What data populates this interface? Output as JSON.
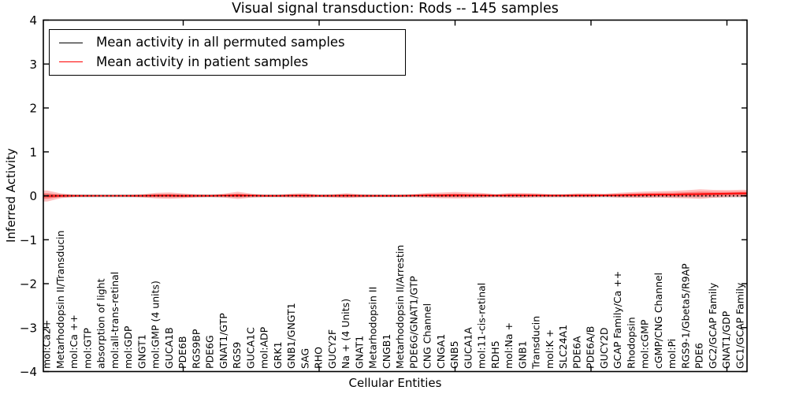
{
  "chart_data": {
    "type": "line",
    "title": "Visual signal transduction: Rods -- 145 samples",
    "xlabel": "Cellular Entities",
    "ylabel": "Inferred Activity",
    "ylim": [
      -4,
      4
    ],
    "ytick_values": [
      -4,
      -3,
      -2,
      -1,
      0,
      1,
      2,
      3,
      4
    ],
    "ytick_labels": [
      "−4",
      "−3",
      "−2",
      "−1",
      "0",
      "1",
      "2",
      "3",
      "4"
    ],
    "xticks_major": [
      10,
      20,
      30,
      40,
      50
    ],
    "grid": false,
    "legend_position": "upper left",
    "categories": [
      "mol:Ca2+",
      "Metarhodopsin II/Transducin",
      "mol:Ca ++",
      "mol:GTP",
      "absorption of light",
      "mol:all-trans-retinal",
      "mol:GDP",
      "GNGT1",
      "mol:GMP (4 units)",
      "GUCA1B",
      "PDE6B",
      "RGS9BP",
      "PDE6G",
      "GNAT1/GTP",
      "RGS9",
      "GUCA1C",
      "mol:ADP",
      "GRK1",
      "GNB1/GNGT1",
      "SAG",
      "RHO",
      "GUCY2F",
      "Na + (4 Units)",
      "GNAT1",
      "Metarhodopsin II",
      "CNGB1",
      "Metarhodopsin II/Arrestin",
      "PDE6G/GNAT1/GTP",
      "CNG Channel",
      "CNGA1",
      "GNB5",
      "GUCA1A",
      "mol:11-cis-retinal",
      "RDH5",
      "mol:Na +",
      "GNB1",
      "Transducin",
      "mol:K +",
      "SLC24A1",
      "PDE6A",
      "PDE6A/B",
      "GUCY2D",
      "GCAP Family/Ca ++",
      "Rhodopsin",
      "mol:cGMP",
      "cGMP/CNG Channel",
      "mol:Pi",
      "RGS9-1/Gbeta5/R9AP",
      "PDE6",
      "GC2/GCAP Family",
      "GNAT1/GDP",
      "GC1/GCAP Family"
    ],
    "series": [
      {
        "name": "Mean activity in all permuted samples",
        "color": "#000000",
        "line_style": "dotted",
        "band_color": "#d6d6d6",
        "band_opacity": 1,
        "values": [
          0,
          0,
          0,
          0,
          0,
          0,
          0,
          0,
          0,
          0,
          0,
          0,
          0,
          0,
          0,
          0,
          0,
          0,
          0,
          0,
          0,
          0,
          0,
          0,
          0,
          0,
          0,
          0,
          0,
          0,
          0,
          0,
          0,
          0,
          0,
          0,
          0,
          0,
          0,
          0,
          0,
          0,
          0,
          0,
          0,
          0,
          0,
          0,
          0,
          0,
          0,
          0
        ],
        "band": [
          0.035,
          0.035,
          0.035,
          0.035,
          0.035,
          0.035,
          0.035,
          0.035,
          0.035,
          0.035,
          0.035,
          0.035,
          0.035,
          0.035,
          0.035,
          0.035,
          0.035,
          0.035,
          0.035,
          0.035,
          0.035,
          0.035,
          0.035,
          0.035,
          0.035,
          0.035,
          0.035,
          0.035,
          0.035,
          0.035,
          0.035,
          0.035,
          0.035,
          0.035,
          0.035,
          0.035,
          0.035,
          0.035,
          0.035,
          0.035,
          0.035,
          0.035,
          0.035,
          0.035,
          0.035,
          0.035,
          0.035,
          0.035,
          0.035,
          0.035,
          0.035,
          0.035
        ]
      },
      {
        "name": "Mean activity in patient samples",
        "color": "#ff0000",
        "line_style": "solid",
        "band_color": "#ff0000",
        "band_opacity": 0.25,
        "inner_band_factor": 0.5,
        "inner_band_opacity": 0.35,
        "values": [
          -0.005,
          0,
          0,
          0,
          0,
          0,
          0,
          0,
          0.005,
          0.005,
          0,
          0,
          0,
          0.005,
          0.01,
          0.005,
          0,
          0,
          0.005,
          0.005,
          0,
          0,
          0.005,
          0,
          0,
          0,
          0,
          0.005,
          0.01,
          0.01,
          0.015,
          0.01,
          0.01,
          0.005,
          0.01,
          0.01,
          0.01,
          0.005,
          0.005,
          0.01,
          0.01,
          0.01,
          0.015,
          0.02,
          0.025,
          0.03,
          0.03,
          0.035,
          0.04,
          0.045,
          0.05,
          0.055
        ],
        "band": [
          0.125,
          0.054,
          0.027,
          0.022,
          0.018,
          0.018,
          0.022,
          0.036,
          0.063,
          0.072,
          0.054,
          0.036,
          0.027,
          0.045,
          0.081,
          0.045,
          0.027,
          0.027,
          0.045,
          0.054,
          0.027,
          0.036,
          0.054,
          0.036,
          0.027,
          0.027,
          0.027,
          0.036,
          0.054,
          0.063,
          0.072,
          0.063,
          0.054,
          0.036,
          0.054,
          0.054,
          0.045,
          0.036,
          0.036,
          0.045,
          0.045,
          0.036,
          0.054,
          0.063,
          0.072,
          0.072,
          0.081,
          0.09,
          0.108,
          0.09,
          0.081,
          0.081
        ]
      }
    ]
  }
}
